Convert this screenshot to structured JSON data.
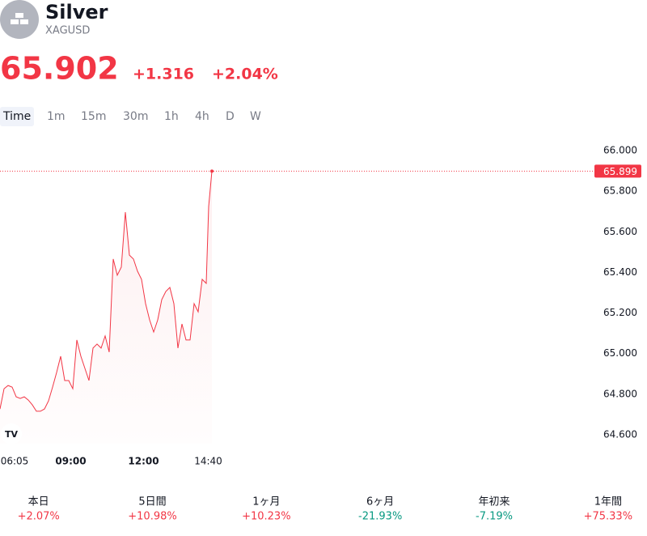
{
  "header": {
    "title": "Silver",
    "symbol": "XAGUSD",
    "price": "65.902",
    "change": "+1.316",
    "change_percent": "+2.04%"
  },
  "tabs": [
    "Time",
    "1m",
    "15m",
    "30m",
    "1h",
    "4h",
    "D",
    "W"
  ],
  "chart_data": {
    "type": "line",
    "color": "#f23645",
    "x": [
      365,
      375,
      385,
      395,
      405,
      415,
      425,
      435,
      445,
      455,
      465,
      475,
      485,
      495,
      505,
      515,
      525,
      535,
      545,
      555,
      565,
      575,
      585,
      595,
      605,
      615,
      625,
      635,
      645,
      655,
      665,
      675,
      685,
      695,
      705,
      715,
      725,
      735,
      745,
      755,
      765,
      775,
      785,
      795,
      805,
      815,
      825,
      835,
      845,
      855,
      865,
      875,
      881,
      889
    ],
    "series": [
      {
        "name": "XAGUSD",
        "color": "#f23645",
        "values": [
          64.727,
          64.827,
          64.843,
          64.835,
          64.787,
          64.779,
          64.787,
          64.771,
          64.747,
          64.716,
          64.716,
          64.727,
          64.767,
          64.835,
          64.907,
          64.987,
          64.867,
          64.867,
          64.827,
          65.067,
          64.987,
          64.927,
          64.867,
          65.027,
          65.047,
          65.027,
          65.087,
          65.007,
          65.466,
          65.386,
          65.426,
          65.697,
          65.485,
          65.466,
          65.406,
          65.366,
          65.246,
          65.166,
          65.106,
          65.166,
          65.266,
          65.306,
          65.326,
          65.246,
          65.027,
          65.146,
          65.067,
          65.067,
          65.246,
          65.206,
          65.366,
          65.346,
          65.725,
          65.899
        ]
      }
    ],
    "last_price": 65.899,
    "xlim": [
      365,
      1835
    ],
    "ylim": [
      64.556,
      66.044
    ],
    "xticks": [
      {
        "value": 365,
        "label": "06:05"
      },
      {
        "value": 540,
        "label": "09:00",
        "bold": true
      },
      {
        "value": 720,
        "label": "12:00",
        "bold": true
      },
      {
        "value": 880,
        "label": "14:40"
      }
    ],
    "yticks": [
      {
        "value": 64.6,
        "label": "64.600"
      },
      {
        "value": 64.8,
        "label": "64.800"
      },
      {
        "value": 65,
        "label": "65.000"
      },
      {
        "value": 65.2,
        "label": "65.200"
      },
      {
        "value": 65.4,
        "label": "65.400"
      },
      {
        "value": 65.6,
        "label": "65.600"
      },
      {
        "value": 65.8,
        "label": "65.800"
      },
      {
        "value": 66,
        "label": "66.000"
      }
    ]
  },
  "performance": [
    {
      "label": "本日",
      "value": "+2.07%",
      "color": "#f23645"
    },
    {
      "label": "5日間",
      "value": "+10.98%",
      "color": "#f23645"
    },
    {
      "label": "1ヶ月",
      "value": "+10.23%",
      "color": "#f23645"
    },
    {
      "label": "6ヶ月",
      "value": "-21.93%",
      "color": "#089981"
    },
    {
      "label": "年初来",
      "value": "-7.19%",
      "color": "#089981"
    },
    {
      "label": "1年間",
      "value": "+75.33%",
      "color": "#f23645"
    }
  ]
}
